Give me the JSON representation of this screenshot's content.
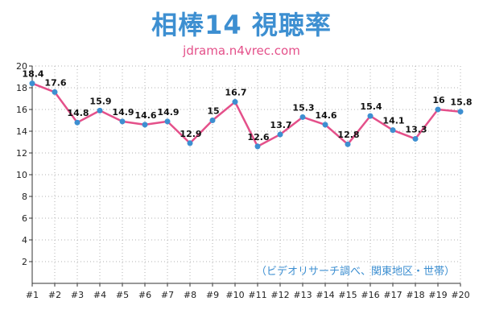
{
  "header": {
    "title": "相棒14 視聴率",
    "subtitle": "jdrama.n4vrec.com"
  },
  "note": "（ビデオリサーチ調べ、関東地区・世帯）",
  "colors": {
    "line": "#e4508a",
    "point": "#3d8fd1",
    "title": "#3d8fd1",
    "subtitle": "#e4508a",
    "grid": "#b0b0b0"
  },
  "chart_data": {
    "type": "line",
    "title": "相棒14 視聴率",
    "xlabel": "",
    "ylabel": "",
    "categories": [
      "#1",
      "#2",
      "#3",
      "#4",
      "#5",
      "#6",
      "#7",
      "#8",
      "#9",
      "#10",
      "#11",
      "#12",
      "#13",
      "#14",
      "#15",
      "#16",
      "#17",
      "#18",
      "#19",
      "#20"
    ],
    "values": [
      18.4,
      17.6,
      14.8,
      15.9,
      14.9,
      14.6,
      14.9,
      12.9,
      15,
      16.7,
      12.6,
      13.7,
      15.3,
      14.6,
      12.8,
      15.4,
      14.1,
      13.3,
      16,
      15.8
    ],
    "value_labels": [
      "18.4",
      "17.6",
      "14.8",
      "15.9",
      "14.9",
      "14.6",
      "14.9",
      "12.9",
      "15",
      "16.7",
      "12.6",
      "13.7",
      "15.3",
      "14.6",
      "12.8",
      "15.4",
      "14.1",
      "13.3",
      "16",
      "15.8"
    ],
    "yticks": [
      "2",
      "4",
      "6",
      "8",
      "10",
      "12",
      "14",
      "16",
      "18",
      "20"
    ],
    "ylim": [
      0,
      20
    ],
    "grid": true,
    "grid_style": "dotted"
  }
}
